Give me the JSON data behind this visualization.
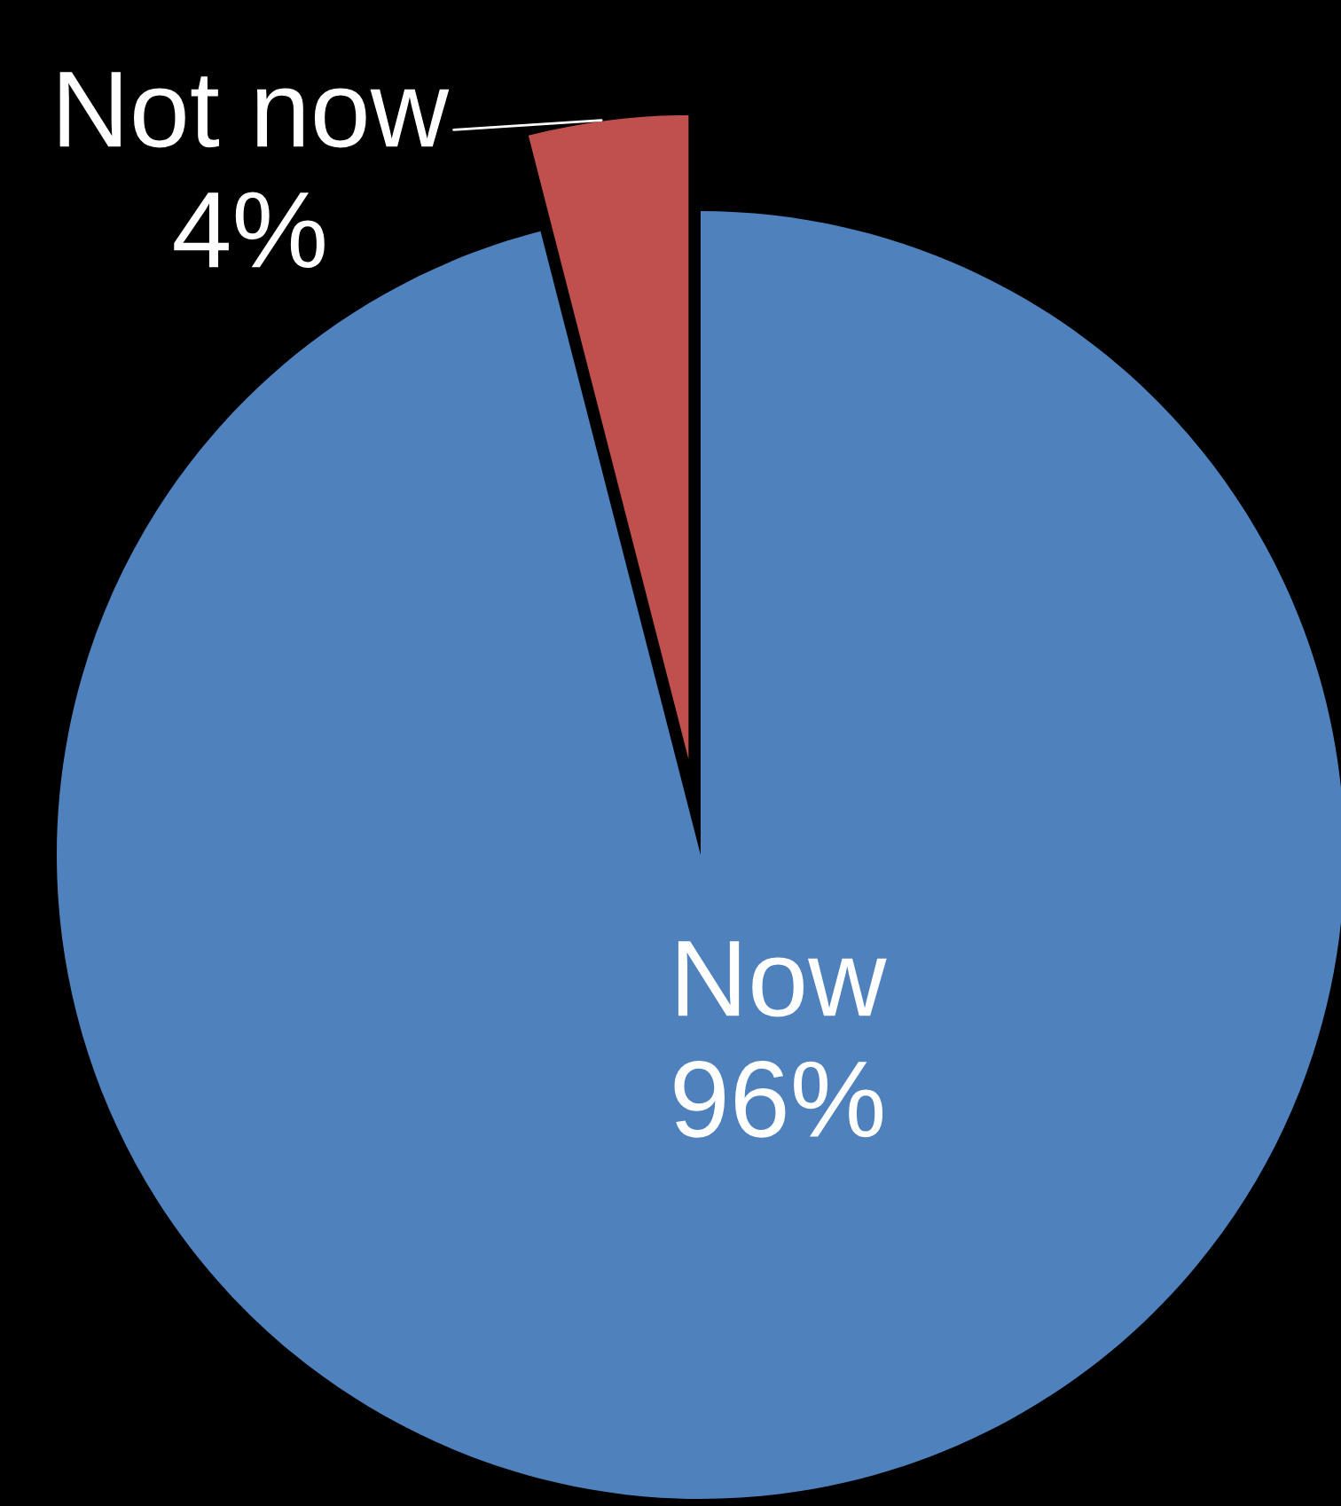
{
  "chart_data": {
    "type": "pie",
    "categories": [
      "Now",
      "Not now"
    ],
    "values": [
      96,
      4
    ],
    "colors": [
      "#4f81bd",
      "#c0504d"
    ],
    "value_labels": [
      "96%",
      "4%"
    ],
    "legend": false
  }
}
